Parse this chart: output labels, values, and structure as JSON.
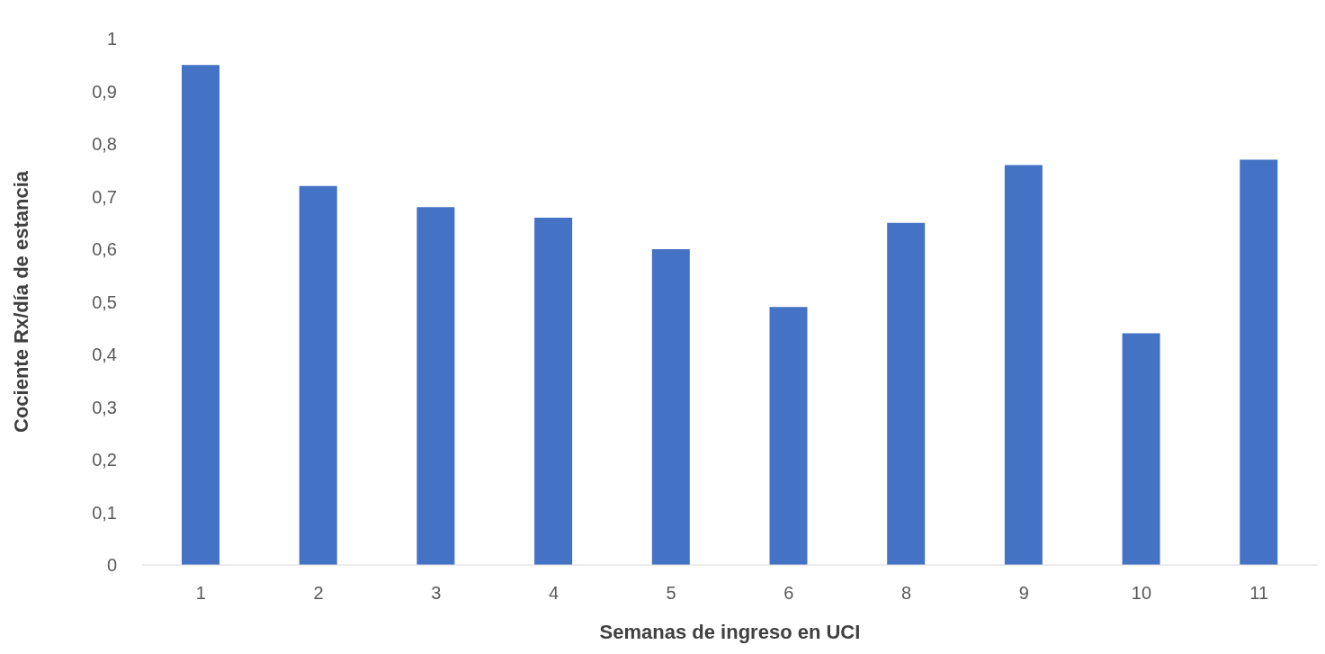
{
  "chart_data": {
    "type": "bar",
    "xlabel": "Semanas de ingreso en UCI",
    "ylabel": "Cociente Rx/día de estancia",
    "categories": [
      "1",
      "2",
      "3",
      "4",
      "5",
      "6",
      "8",
      "9",
      "10",
      "11"
    ],
    "values": [
      0.95,
      0.72,
      0.68,
      0.66,
      0.6,
      0.49,
      0.65,
      0.76,
      0.44,
      0.77
    ],
    "color": "#4472c4",
    "ylim": [
      0,
      1
    ],
    "yticks": [
      0,
      {
        "value": 0.1,
        "label": "0,1"
      },
      {
        "value": 0.2,
        "label": "0,2"
      },
      {
        "value": 0.3,
        "label": "0,3"
      },
      {
        "value": 0.4,
        "label": "0,4"
      },
      {
        "value": 0.5,
        "label": "0,5"
      },
      {
        "value": 0.6,
        "label": "0,6"
      },
      {
        "value": 0.7,
        "label": "0,7"
      },
      {
        "value": 0.8,
        "label": "0,8"
      },
      {
        "value": 0.9,
        "label": "0,9"
      },
      1
    ],
    "grid": false,
    "legend": false
  }
}
